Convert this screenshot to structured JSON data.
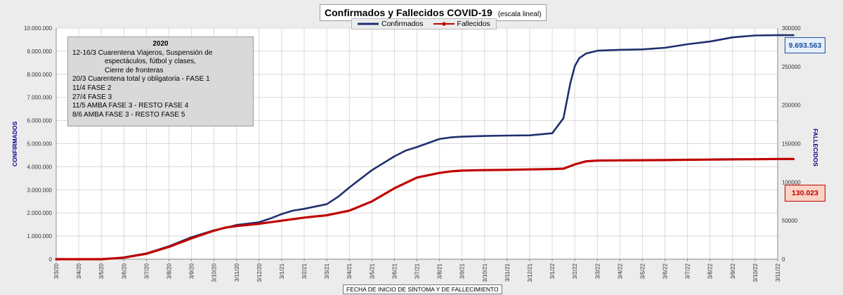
{
  "chart_data": {
    "type": "line",
    "title": "Confirmados  y Fallecidos COVID-19",
    "subtitle": "(escala lineal)",
    "xlabel": "FECHA DE INICIO  DE SÍNTOMA  Y DE FALLECIMIENTO",
    "ylabel": "CONFIRMADOS",
    "y2label": "FALLECIDOS",
    "ylim": [
      0,
      10000000
    ],
    "y2lim": [
      0,
      300000
    ],
    "y_ticks": [
      "0",
      "1.000.000",
      "2.000.000",
      "3.000.000",
      "4.000.000",
      "5.000.000",
      "6.000.000",
      "7.000.000",
      "8.000.000",
      "9.000.000",
      "10.000.000"
    ],
    "y2_ticks": [
      "0",
      "50000",
      "100000",
      "150000",
      "200000",
      "250000",
      "300000"
    ],
    "x_tick_labels": [
      "3/3/20",
      "3/4/20",
      "3/5/20",
      "3/6/20",
      "3/7/20",
      "3/8/20",
      "3/9/20",
      "3/10/20",
      "3/11/20",
      "3/12/20",
      "3/1/21",
      "3/2/21",
      "3/3/21",
      "3/4/21",
      "3/5/21",
      "3/6/21",
      "3/7/21",
      "3/8/21",
      "3/9/21",
      "3/10/21",
      "3/11/21",
      "3/12/21",
      "3/1/22",
      "3/2/22",
      "3/3/22",
      "3/4/22",
      "3/5/22",
      "3/6/22",
      "3/7/22",
      "3/8/22",
      "3/9/22",
      "3/10/22",
      "3/11/22"
    ],
    "grid": true,
    "legend_position": "top-center",
    "series": [
      {
        "name": "Confirmados",
        "axis": "left",
        "color": "#1f2f6f",
        "x_index": [
          0,
          1,
          2,
          2.5,
          3,
          4,
          5,
          6,
          7,
          7.5,
          8,
          9,
          9.5,
          10,
          10.5,
          11,
          12,
          12.5,
          13,
          14,
          15,
          15.5,
          16,
          17,
          17.5,
          18,
          19,
          20,
          21,
          22,
          22.5,
          22.8,
          23,
          23.2,
          23.5,
          24,
          25,
          26,
          27,
          28,
          29,
          30,
          31,
          32,
          32.7
        ],
        "values": [
          0,
          0,
          0,
          30000,
          80000,
          250000,
          560000,
          950000,
          1250000,
          1350000,
          1480000,
          1600000,
          1760000,
          1950000,
          2100000,
          2180000,
          2380000,
          2700000,
          3100000,
          3850000,
          4450000,
          4700000,
          4850000,
          5200000,
          5270000,
          5300000,
          5330000,
          5350000,
          5360000,
          5450000,
          6100000,
          7600000,
          8350000,
          8700000,
          8900000,
          9020000,
          9060000,
          9080000,
          9150000,
          9300000,
          9420000,
          9600000,
          9680000,
          9693563,
          9693563
        ]
      },
      {
        "name": "Fallecidos",
        "axis": "right",
        "color": "#c00000",
        "x_index": [
          0,
          1,
          2,
          3,
          4,
          5,
          6,
          7,
          7.5,
          8,
          9,
          10,
          11,
          12,
          12.5,
          13,
          14,
          15,
          16,
          17,
          17.5,
          18,
          19,
          20,
          21,
          22,
          22.5,
          23,
          23.5,
          24,
          25,
          26,
          27,
          28,
          29,
          30,
          31,
          32,
          32.7
        ],
        "values": [
          0,
          0,
          0,
          2000,
          7000,
          16000,
          27000,
          37000,
          41000,
          43000,
          46000,
          50000,
          54000,
          57000,
          60000,
          63000,
          75000,
          92000,
          106000,
          112000,
          114000,
          115000,
          115600,
          116000,
          116500,
          117000,
          117500,
          123000,
          127000,
          128000,
          128300,
          128500,
          128700,
          129000,
          129300,
          129600,
          129800,
          130000,
          130023
        ]
      }
    ],
    "annotation": {
      "year": "2020",
      "lines": [
        {
          "text": "12-16/3  Cuarentena Viajeros, Suspensión de",
          "indent": false
        },
        {
          "text": "espectáculos, fútbol y clases,",
          "indent": true
        },
        {
          "text": "Cierre de fronteras",
          "indent": true
        },
        {
          "text": "20/3  Cuarentena total y obligatoria - FASE 1",
          "indent": false
        },
        {
          "text": "11/4  FASE 2",
          "indent": false
        },
        {
          "text": "27/4  FASE 3",
          "indent": false
        },
        {
          "text": "11/5  AMBA FASE 3 - RESTO FASE 4",
          "indent": false
        },
        {
          "text": "8/6  AMBA FASE 3 - RESTO FASE 5",
          "indent": false
        }
      ]
    },
    "latest": {
      "confirmados": "9.693.563",
      "fallecidos": "130.023"
    }
  }
}
